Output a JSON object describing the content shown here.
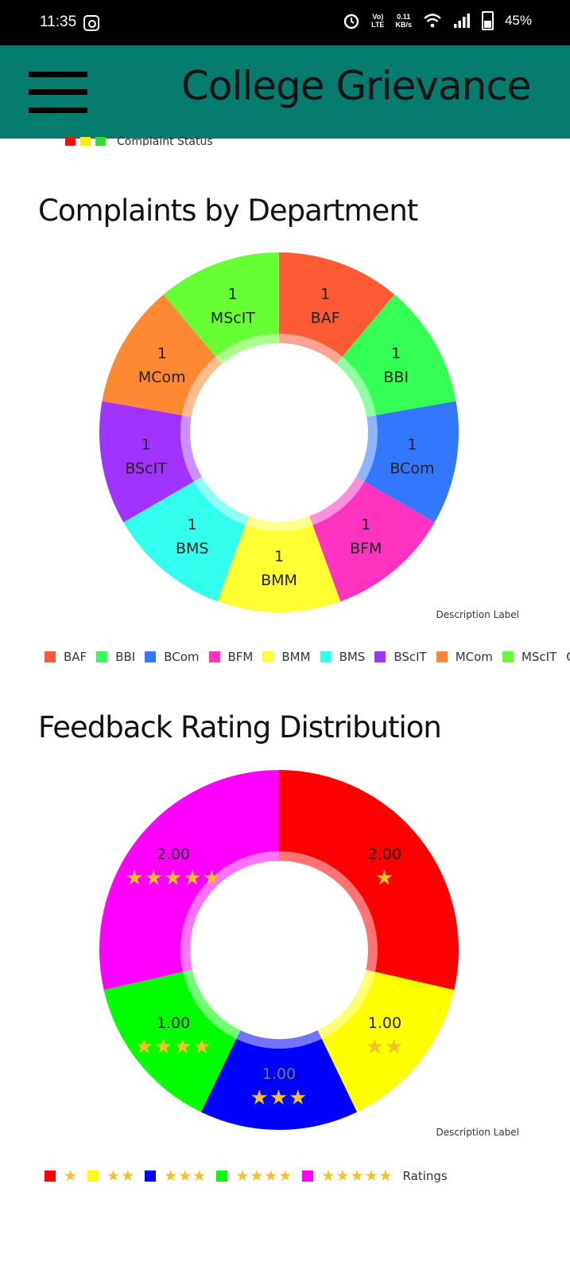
{
  "status_bar": {
    "time": "11:35",
    "net_top": "0.11",
    "net_bottom": "KB/s",
    "lte_top": "Vo)",
    "lte_bottom": "LTE",
    "battery": "45%"
  },
  "app_bar": {
    "title": "College Grievance",
    "menu_icon": "hamburger-menu-icon"
  },
  "prev_chart": {
    "legend_label": "Complaint Status",
    "colors": [
      "#ee1111",
      "#ffee00",
      "#33dd33"
    ]
  },
  "charts": {
    "department": {
      "title": "Complaints by Department",
      "description": "Description Label",
      "legend_tail": "Com"
    },
    "feedback": {
      "title": "Feedback Rating Distribution",
      "description": "Description Label",
      "legend_tail": "Ratings"
    }
  },
  "chart_data": [
    {
      "type": "pie",
      "title": "Complaints by Department",
      "categories": [
        "BAF",
        "BBI",
        "BCom",
        "BFM",
        "BMM",
        "BMS",
        "BScIT",
        "MCom",
        "MScIT"
      ],
      "values": [
        1,
        1,
        1,
        1,
        1,
        1,
        1,
        1,
        1
      ],
      "value_labels": [
        "1",
        "1",
        "1",
        "1",
        "1",
        "1",
        "1",
        "1",
        "1"
      ],
      "colors": [
        "#ff5a36",
        "#33ff55",
        "#3377ff",
        "#ff33c0",
        "#ffff33",
        "#33ffee",
        "#a033ff",
        "#ff8833",
        "#66ff33"
      ],
      "label_colors": [
        "#222222",
        "#222222",
        "#222222",
        "#222222",
        "#222222",
        "#222222",
        "#222222",
        "#222222",
        "#222222"
      ],
      "legend_position": "bottom-left"
    },
    {
      "type": "pie",
      "title": "Feedback Rating Distribution",
      "categories": [
        "1 star",
        "2 stars",
        "3 stars",
        "4 stars",
        "5 stars"
      ],
      "stars": [
        1,
        2,
        3,
        4,
        5
      ],
      "values": [
        2,
        1,
        1,
        1,
        2
      ],
      "value_labels": [
        "2.00",
        "1.00",
        "1.00",
        "1.00",
        "2.00"
      ],
      "colors": [
        "#ff0000",
        "#ffff00",
        "#0000ff",
        "#00ff00",
        "#ff00ff"
      ],
      "label_colors": [
        "#222222",
        "#222222",
        "#777777",
        "#222222",
        "#222222"
      ],
      "legend_position": "bottom-left"
    }
  ]
}
